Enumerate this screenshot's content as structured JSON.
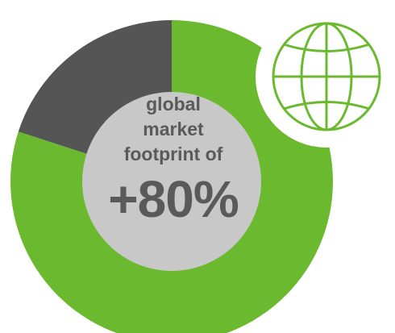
{
  "chart_data": {
    "type": "pie",
    "title": "",
    "slices": [
      {
        "label": "",
        "value": 80
      },
      {
        "label": "",
        "value": 20
      }
    ],
    "center_text": {
      "line1": "global",
      "line2": "market",
      "line3": "footprint of",
      "value": "+80%"
    }
  },
  "icon": "globe-icon",
  "colors": {
    "green": "#6bb92f",
    "dark": "#555556",
    "center": "#c8c8c8",
    "text": "#5a5a5b",
    "badge_border": "#ffffff"
  }
}
